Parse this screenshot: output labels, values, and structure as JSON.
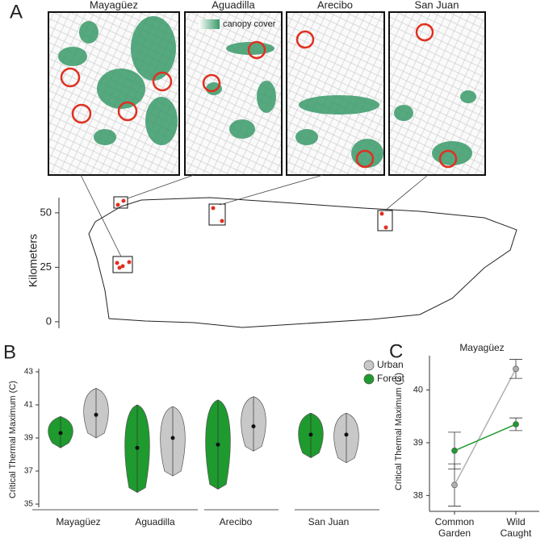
{
  "panel_labels": [
    "A",
    "B",
    "C"
  ],
  "chart_data": [
    {
      "type": "map",
      "insets": [
        "Mayagüez",
        "Aguadilla",
        "Arecibo",
        "San Juan"
      ],
      "legend_label": "canopy cover",
      "ylabel": "Kilometers",
      "ylim": [
        -3,
        57
      ],
      "yticks": [
        0,
        25,
        50
      ],
      "color": "#3a9a6a"
    },
    {
      "type": "violin",
      "ylabel": "Critical Thermal Maximum (C)",
      "categories": [
        "Mayagüez",
        "Aguadilla",
        "Arecibo",
        "San Juan"
      ],
      "series": [
        {
          "name": "Urban",
          "color": "#c8c8c8",
          "values": [
            40.4,
            39.0,
            39.7,
            39.2
          ],
          "min": [
            39.0,
            36.7,
            38.2,
            37.5
          ],
          "max": [
            42.0,
            40.9,
            41.5,
            40.5
          ]
        },
        {
          "name": "Forest",
          "color": "#1e9a2e",
          "values": [
            39.3,
            38.4,
            38.6,
            39.2
          ],
          "min": [
            38.4,
            35.7,
            35.9,
            37.8
          ],
          "max": [
            40.3,
            41.0,
            41.3,
            40.5
          ]
        }
      ],
      "ylim": [
        35,
        43
      ],
      "yticks": [
        35,
        37,
        39,
        41,
        43
      ],
      "legend": "top-right"
    },
    {
      "type": "line",
      "title": "Mayagüez",
      "ylabel": "Critical Thermal Maximum (C)",
      "categories": [
        "Common Garden",
        "Wild Caught"
      ],
      "series": [
        {
          "name": "Urban",
          "color": "#b0b0b0",
          "values": [
            38.2,
            40.4
          ],
          "errors": [
            0.4,
            0.18
          ]
        },
        {
          "name": "Forest",
          "color": "#1e9a2e",
          "values": [
            38.85,
            39.35
          ],
          "errors": [
            0.35,
            0.12
          ]
        }
      ],
      "ylim": [
        37.7,
        40.65
      ],
      "yticks": [
        38,
        39,
        40
      ]
    }
  ]
}
